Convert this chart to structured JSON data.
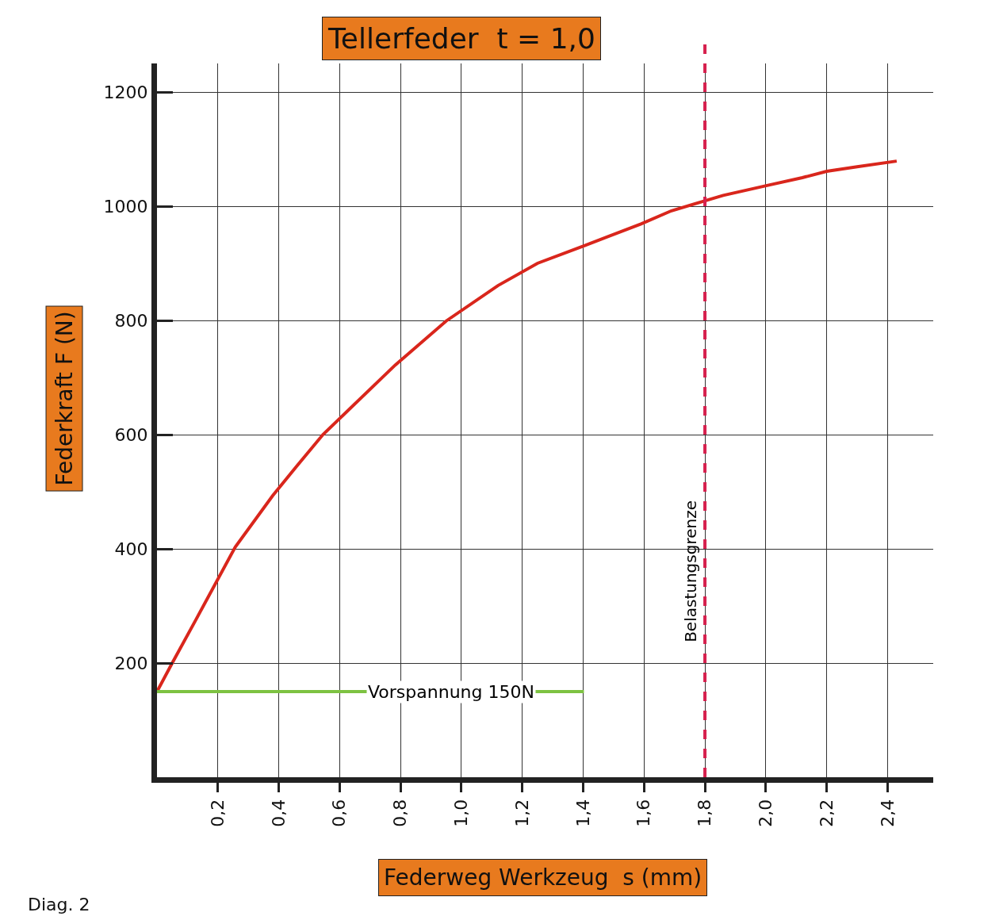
{
  "chart_data": {
    "type": "line",
    "title": "Tellerfeder  t = 1,0",
    "xlabel": "Federweg Werkzeug  s (mm)",
    "ylabel": "Federkraft F (N)",
    "x": [
      0,
      0.05,
      0.13,
      0.257,
      0.38,
      0.458,
      0.545,
      0.783,
      0.95,
      1.12,
      1.25,
      1.405,
      1.59,
      1.69,
      1.86,
      2.01,
      2.12,
      2.2,
      2.3,
      2.43
    ],
    "series": [
      {
        "color": "#d9261c",
        "values": [
          150,
          200,
          278,
          403,
          493,
          544,
          600,
          722,
          799,
          861,
          900,
          931,
          969,
          992,
          1019,
          1037,
          1050,
          1061,
          1069,
          1079
        ]
      }
    ],
    "xlim": [
      0,
      2.55
    ],
    "ylim": [
      0,
      1250
    ],
    "xticks": [
      {
        "value": 0.2,
        "label": "0,2"
      },
      {
        "value": 0.4,
        "label": "0,4"
      },
      {
        "value": 0.6,
        "label": "0,6"
      },
      {
        "value": 0.8,
        "label": "0,8"
      },
      {
        "value": 1.0,
        "label": "1,0"
      },
      {
        "value": 1.2,
        "label": "1,2"
      },
      {
        "value": 1.4,
        "label": "1,4"
      },
      {
        "value": 1.6,
        "label": "1,6"
      },
      {
        "value": 1.8,
        "label": "1,8"
      },
      {
        "value": 2.0,
        "label": "2,0"
      },
      {
        "value": 2.2,
        "label": "2,2"
      },
      {
        "value": 2.4,
        "label": "2,4"
      }
    ],
    "yticks": [
      200,
      400,
      600,
      800,
      1000,
      1200
    ],
    "grid": true,
    "marker": "none",
    "line_style": "solid",
    "ref_lines": [
      {
        "axis": "x",
        "value": 1.8,
        "label": "Belastungsgrenze",
        "color": "#d6204e",
        "line_style": "dashed"
      },
      {
        "axis": "y",
        "value": 150,
        "label": "Vorspannung 150N",
        "color": "#7dc242",
        "line_style": "solid"
      }
    ],
    "annotations": [
      "Diag. 2"
    ]
  }
}
